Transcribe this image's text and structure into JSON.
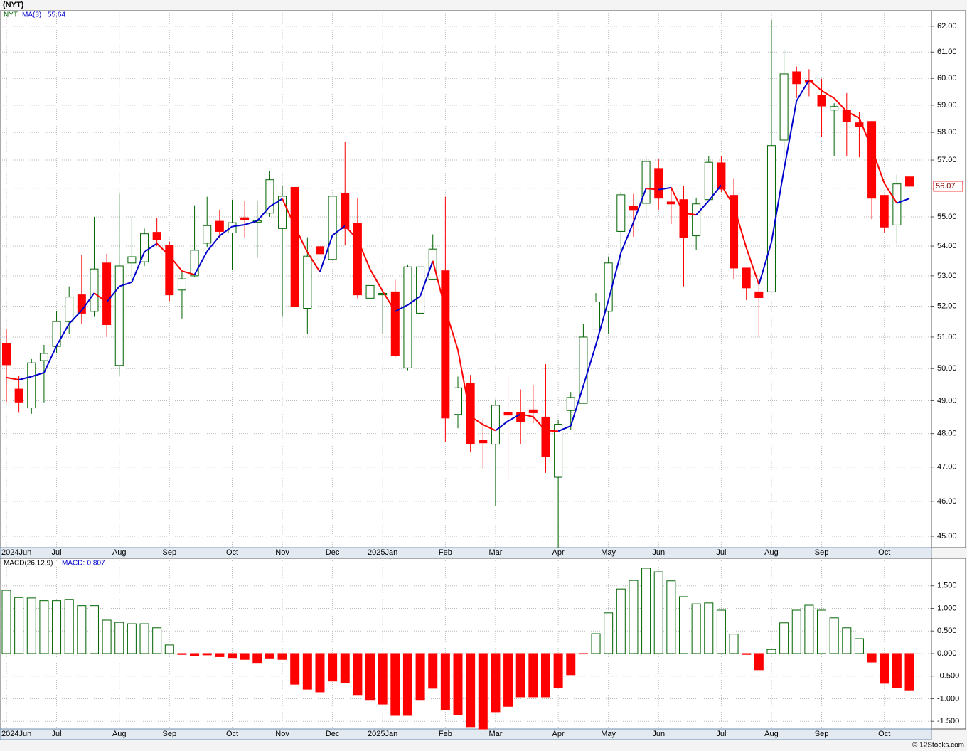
{
  "chart_data": [
    {
      "type": "candlestick",
      "title": "(NYT)",
      "symbol": "NYT",
      "ma_name": "MA(3)",
      "ma_value_label": "55.64",
      "last_price_label": "56.07",
      "categories": [
        "2024Jun",
        null,
        null,
        null,
        "Jul",
        null,
        null,
        null,
        null,
        "Aug",
        null,
        null,
        null,
        "Sep",
        null,
        null,
        null,
        null,
        "Oct",
        null,
        null,
        null,
        "Nov",
        null,
        null,
        null,
        "Dec",
        null,
        null,
        null,
        "2025Jan",
        null,
        null,
        null,
        null,
        "Feb",
        null,
        null,
        null,
        "Mar",
        null,
        null,
        null,
        null,
        "Apr",
        null,
        null,
        null,
        "May",
        null,
        null,
        null,
        "Jun",
        null,
        null,
        null,
        null,
        "Jul",
        null,
        null,
        null,
        "Aug",
        null,
        null,
        null,
        "Sep",
        null,
        null,
        null,
        null,
        "Oct",
        null,
        null
      ],
      "open": [
        50.8,
        49.36,
        48.78,
        50.25,
        50.7,
        51.5,
        52.37,
        51.83,
        53.43,
        50.1,
        53.43,
        53.47,
        54.47,
        54.02,
        52.53,
        53.0,
        54.1,
        54.85,
        54.45,
        54.97,
        54.82,
        55.13,
        54.6,
        56.03,
        51.93,
        53.98,
        53.55,
        55.82,
        54.77,
        52.26,
        52.37,
        52.47,
        50.02,
        51.77,
        52.87,
        53.17,
        48.58,
        49.54,
        47.81,
        47.68,
        48.63,
        48.65,
        48.72,
        48.5,
        46.7,
        48.7,
        48.92,
        51.26,
        51.83,
        54.5,
        55.37,
        55.47,
        56.7,
        55.52,
        55.6,
        54.35,
        55.6,
        56.9,
        55.75,
        53.26,
        52.47,
        52.47,
        57.72,
        60.25,
        59.92,
        59.38,
        58.82,
        58.82,
        58.35,
        58.4,
        55.75,
        54.72,
        56.4
      ],
      "high": [
        51.25,
        49.78,
        50.3,
        50.75,
        51.85,
        52.65,
        53.71,
        55.0,
        53.74,
        55.8,
        55.0,
        54.6,
        54.95,
        54.15,
        53.2,
        55.4,
        55.7,
        55.25,
        55.6,
        55.55,
        55.55,
        56.6,
        56.1,
        56.03,
        54.3,
        53.98,
        55.72,
        57.65,
        55.65,
        52.84,
        52.5,
        52.87,
        53.38,
        53.3,
        54.4,
        55.7,
        49.75,
        49.8,
        48.45,
        49.0,
        49.75,
        49.35,
        49.48,
        50.14,
        48.41,
        49.27,
        51.43,
        52.43,
        53.64,
        55.87,
        55.8,
        57.13,
        57.05,
        56.05,
        56.07,
        55.67,
        57.15,
        57.15,
        56.35,
        53.26,
        52.77,
        62.25,
        61.1,
        60.45,
        60.35,
        59.98,
        59.07,
        59.45,
        58.75,
        58.4,
        55.75,
        56.48,
        56.4
      ],
      "low": [
        48.96,
        48.63,
        48.6,
        48.95,
        50.5,
        51.1,
        51.43,
        51.65,
        51.0,
        49.75,
        52.8,
        53.33,
        54.0,
        52.17,
        51.6,
        52.97,
        53.95,
        54.27,
        53.2,
        54.27,
        53.6,
        55.0,
        51.65,
        51.98,
        51.1,
        53.74,
        53.55,
        54.02,
        52.26,
        51.98,
        51.1,
        50.36,
        49.95,
        51.77,
        52.87,
        47.74,
        48.16,
        47.45,
        46.96,
        45.86,
        46.65,
        47.68,
        48.31,
        46.83,
        44.68,
        48.1,
        48.92,
        51.26,
        51.1,
        53.36,
        54.32,
        55.0,
        55.25,
        54.75,
        52.65,
        53.87,
        55.6,
        55.87,
        52.9,
        52.2,
        51.0,
        52.47,
        57.1,
        59.27,
        59.33,
        57.82,
        57.15,
        57.15,
        57.1,
        54.92,
        54.45,
        54.08,
        56.1
      ],
      "close": [
        50.12,
        48.96,
        50.18,
        50.48,
        51.5,
        52.3,
        51.77,
        53.23,
        51.4,
        53.33,
        53.64,
        54.42,
        54.22,
        52.37,
        52.9,
        53.86,
        54.7,
        54.5,
        54.8,
        54.9,
        54.87,
        56.3,
        55.72,
        51.98,
        53.66,
        53.74,
        55.72,
        54.6,
        52.37,
        52.68,
        52.42,
        50.4,
        53.3,
        53.3,
        53.9,
        48.47,
        49.4,
        47.7,
        47.72,
        48.86,
        48.56,
        48.35,
        48.63,
        47.3,
        48.28,
        49.1,
        51.0,
        52.14,
        53.43,
        55.77,
        55.25,
        56.95,
        55.65,
        55.45,
        54.3,
        55.45,
        56.92,
        55.97,
        53.26,
        52.6,
        52.28,
        57.52,
        60.17,
        59.8,
        59.85,
        58.97,
        58.95,
        58.4,
        58.2,
        55.65,
        54.65,
        56.15,
        56.07
      ],
      "ma": [
        49.72,
        49.65,
        49.75,
        49.87,
        50.72,
        51.43,
        51.86,
        52.43,
        52.13,
        52.65,
        52.79,
        53.8,
        54.09,
        53.67,
        53.16,
        53.04,
        53.82,
        54.35,
        54.67,
        54.73,
        54.86,
        55.36,
        55.63,
        54.67,
        53.79,
        53.13,
        54.37,
        54.69,
        54.23,
        53.22,
        52.49,
        51.83,
        52.04,
        52.33,
        53.5,
        51.89,
        50.59,
        48.52,
        48.27,
        48.09,
        48.38,
        48.59,
        48.51,
        48.09,
        48.07,
        48.23,
        49.46,
        50.75,
        52.19,
        53.78,
        54.82,
        55.99,
        55.95,
        56.02,
        55.13,
        55.07,
        55.56,
        56.11,
        55.38,
        53.94,
        52.71,
        54.13,
        56.66,
        59.16,
        59.94,
        59.54,
        59.26,
        58.77,
        58.52,
        57.42,
        56.17,
        55.48,
        55.64
      ],
      "up_color": "#006400",
      "down_color": "#ff0000",
      "ma_up_color": "#0000cc",
      "ma_down_color": "#ff0000",
      "log_scale": true,
      "ylim": [
        44.68,
        62.61
      ],
      "yticks": [
        {
          "value": 45,
          "label": "45.00"
        },
        {
          "value": 46,
          "label": "46.00"
        },
        {
          "value": 47,
          "label": "47.00"
        },
        {
          "value": 48,
          "label": "48.00"
        },
        {
          "value": 49,
          "label": "49.00"
        },
        {
          "value": 50,
          "label": "50.00"
        },
        {
          "value": 51,
          "label": "51.00"
        },
        {
          "value": 52,
          "label": "52.00"
        },
        {
          "value": 53,
          "label": "53.00"
        },
        {
          "value": 54,
          "label": "54.00"
        },
        {
          "value": 55,
          "label": "55.00"
        },
        {
          "value": 56,
          "label": "56.00"
        },
        {
          "value": 57,
          "label": "57.00"
        },
        {
          "value": 58,
          "label": "58.00"
        },
        {
          "value": 59,
          "label": "59.00"
        },
        {
          "value": 60,
          "label": "60.00"
        },
        {
          "value": 61,
          "label": "61.00"
        },
        {
          "value": 62,
          "label": "62.00"
        }
      ],
      "grid": true
    },
    {
      "type": "bar",
      "title": "MACD(26,12,9)",
      "value_name": "MACD:-0.807",
      "footer": "© 12Stocks.com",
      "categories": [
        "2024Jun",
        null,
        null,
        null,
        "Jul",
        null,
        null,
        null,
        null,
        "Aug",
        null,
        null,
        null,
        "Sep",
        null,
        null,
        null,
        null,
        "Oct",
        null,
        null,
        null,
        "Nov",
        null,
        null,
        null,
        "Dec",
        null,
        null,
        null,
        "2025Jan",
        null,
        null,
        null,
        null,
        "Feb",
        null,
        null,
        null,
        "Mar",
        null,
        null,
        null,
        null,
        "Apr",
        null,
        null,
        null,
        "May",
        null,
        null,
        null,
        "Jun",
        null,
        null,
        null,
        null,
        "Jul",
        null,
        null,
        null,
        "Aug",
        null,
        null,
        null,
        "Sep",
        null,
        null,
        null,
        null,
        "Oct",
        null,
        null
      ],
      "values": [
        1.4,
        1.24,
        1.23,
        1.17,
        1.17,
        1.2,
        1.06,
        1.06,
        0.74,
        0.69,
        0.66,
        0.66,
        0.57,
        0.19,
        -0.02,
        -0.05,
        -0.03,
        -0.07,
        -0.09,
        -0.13,
        -0.2,
        -0.1,
        -0.13,
        -0.68,
        -0.79,
        -0.85,
        -0.61,
        -0.65,
        -0.91,
        -1.02,
        -1.12,
        -1.37,
        -1.37,
        -1.02,
        -0.77,
        -1.24,
        -1.35,
        -1.62,
        -1.67,
        -1.29,
        -1.17,
        -0.96,
        -0.96,
        -0.96,
        -0.76,
        -0.47,
        -0.01,
        0.44,
        0.9,
        1.43,
        1.62,
        1.89,
        1.81,
        1.61,
        1.26,
        1.1,
        1.12,
        0.96,
        0.43,
        -0.02,
        -0.36,
        0.09,
        0.68,
        0.96,
        1.07,
        0.96,
        0.79,
        0.57,
        0.33,
        -0.19,
        -0.66,
        -0.76,
        -0.807
      ],
      "up_color": "#006400",
      "down_color": "#ff0000",
      "ylim": [
        -1.67,
        2.11
      ],
      "yticks": [
        {
          "value": -1.5,
          "label": "-1.500"
        },
        {
          "value": -1,
          "label": "-1.000"
        },
        {
          "value": -0.5,
          "label": "-0.500"
        },
        {
          "value": 0,
          "label": "0.000"
        },
        {
          "value": 0.5,
          "label": "0.500"
        },
        {
          "value": 1,
          "label": "1.000"
        },
        {
          "value": 1.5,
          "label": "1.500"
        }
      ],
      "grid": true
    }
  ]
}
